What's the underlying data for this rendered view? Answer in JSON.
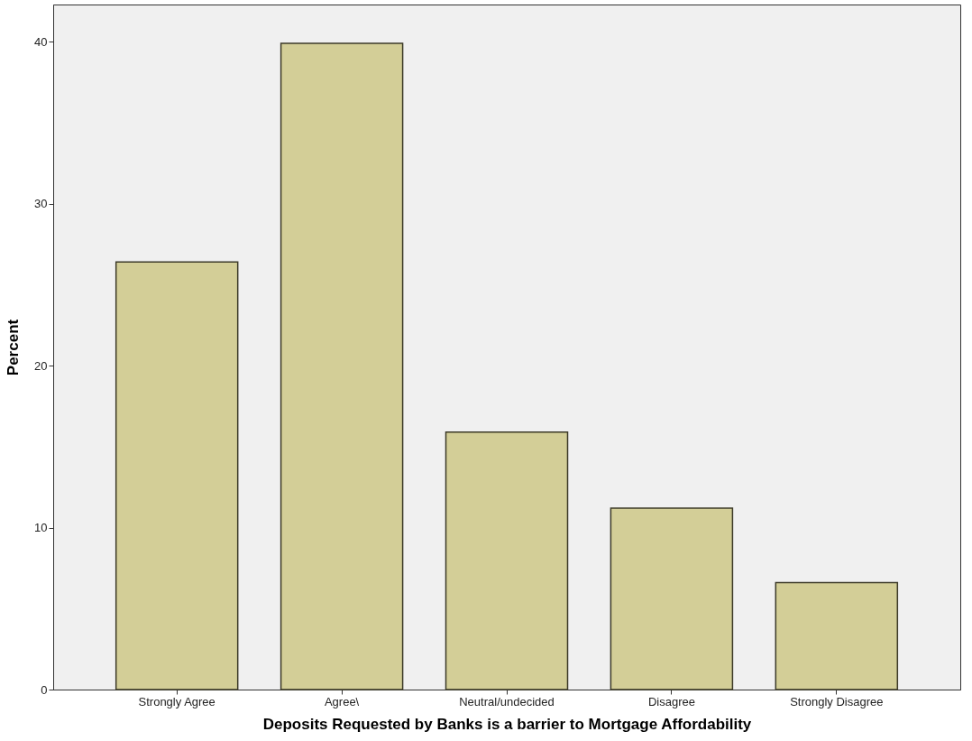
{
  "chart_data": {
    "type": "bar",
    "xlabel": "Deposits Requested by  Banks is a barrier to Mortgage Affordability",
    "ylabel": "Percent",
    "categories": [
      "Strongly Agree",
      "Agree\\",
      "Neutral/undecided",
      "Disagree",
      "Strongly Disagree"
    ],
    "values": [
      26.4,
      39.9,
      15.9,
      11.2,
      6.6
    ],
    "color": "#d3ce97",
    "ylim": [
      0,
      42.3
    ],
    "yticks": [
      0,
      10,
      20,
      30,
      40
    ],
    "grid": false
  }
}
